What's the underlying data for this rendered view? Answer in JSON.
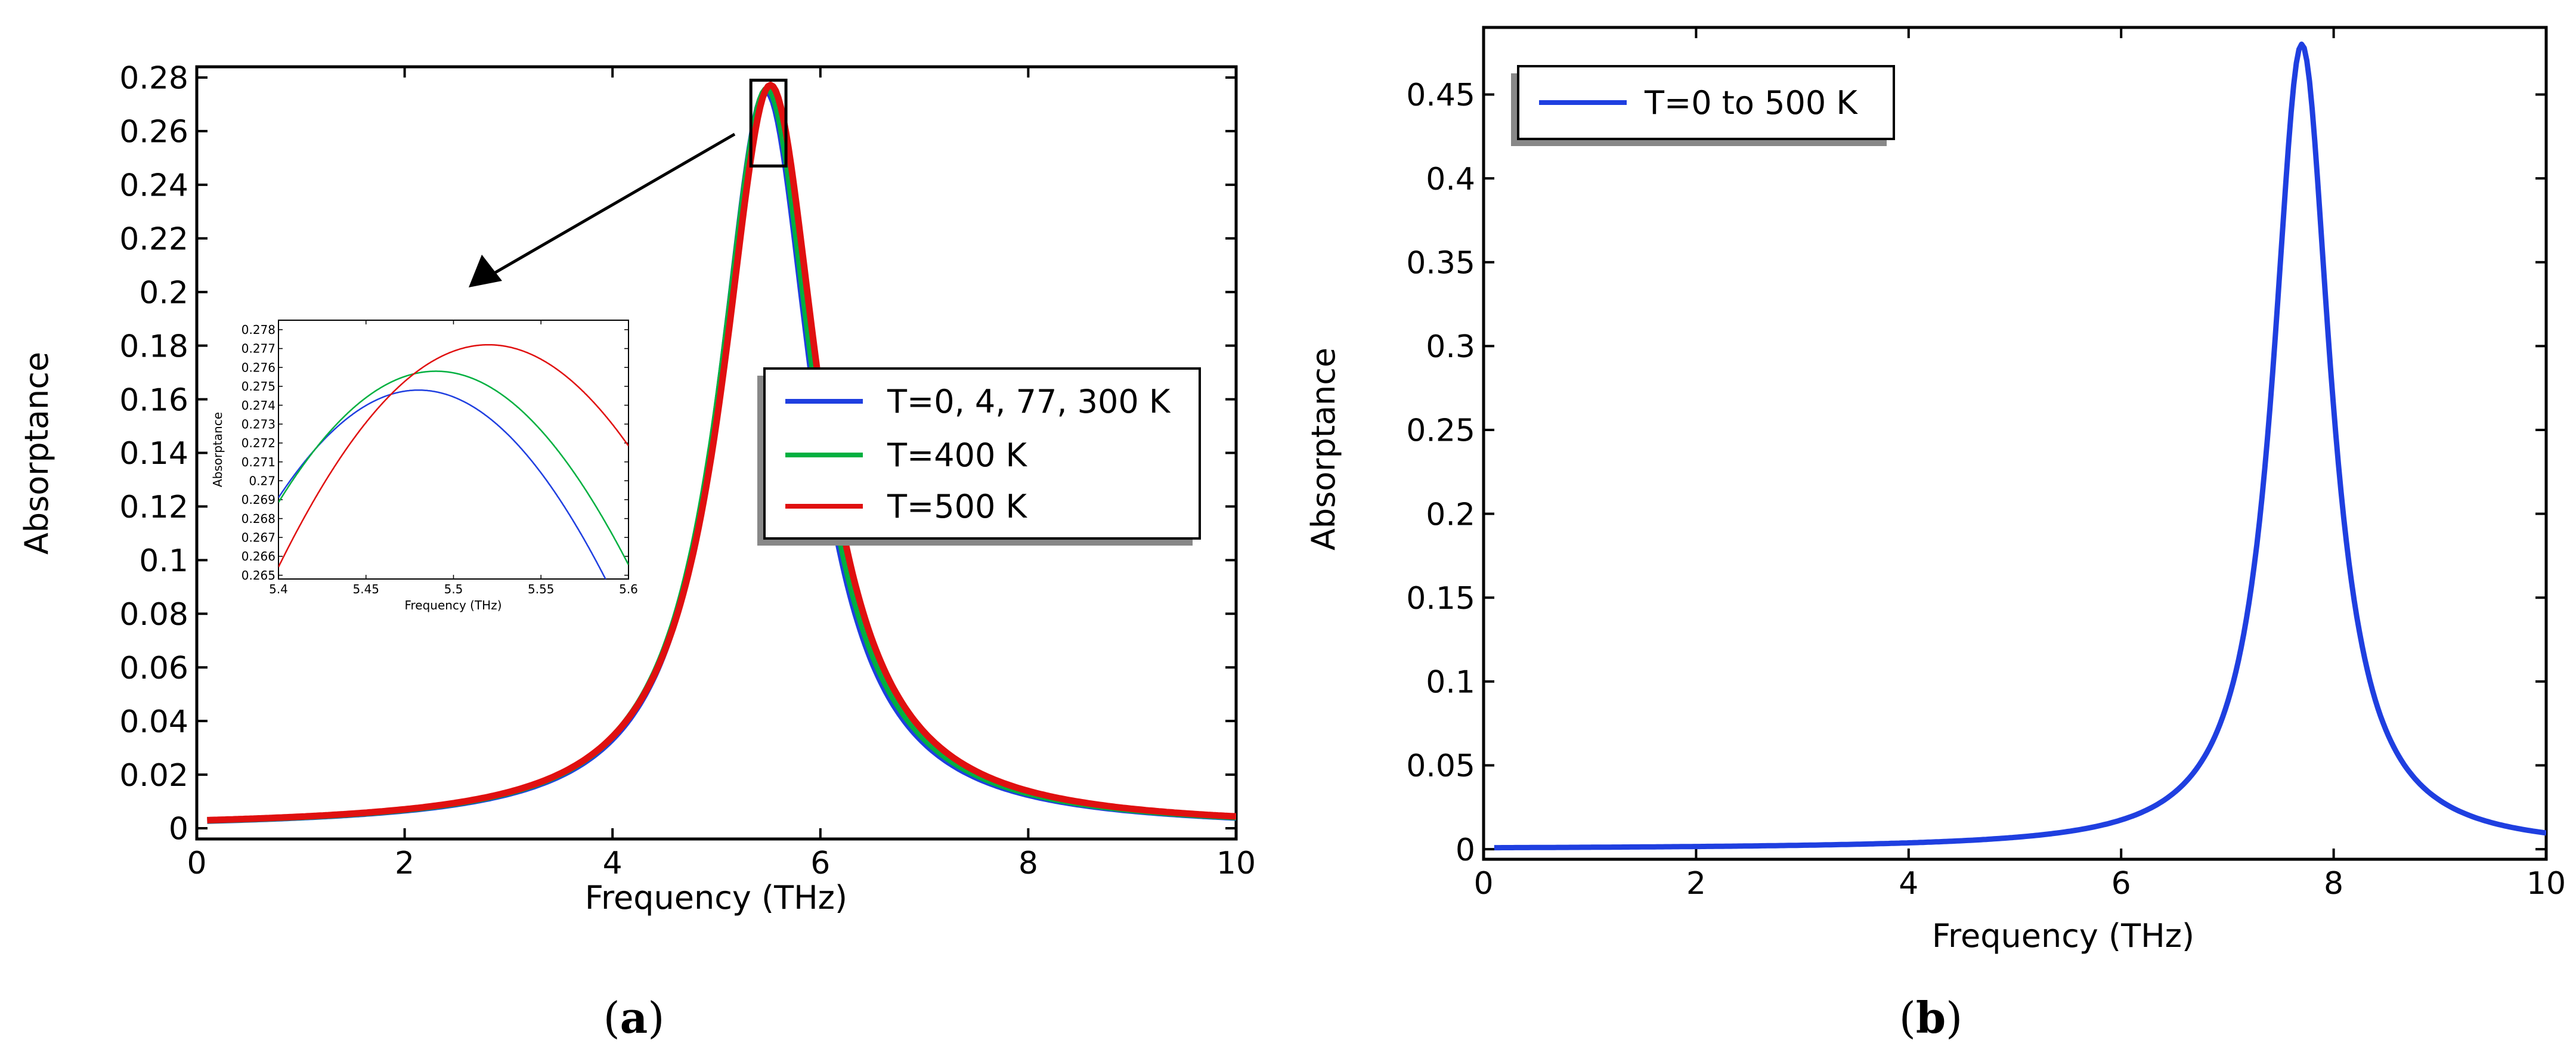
{
  "chart_data": [
    {
      "id": "a",
      "type": "line",
      "caption_letter": "a",
      "xlabel": "Frequency (THz)",
      "ylabel": "Absorptance",
      "xlim": [
        0,
        10
      ],
      "ylim": [
        -0.004,
        0.284
      ],
      "x_ticks": [
        0,
        2,
        4,
        6,
        8,
        10
      ],
      "x_tick_labels": [
        "0",
        "2",
        "4",
        "6",
        "8",
        "10"
      ],
      "y_ticks": [
        0,
        0.02,
        0.04,
        0.06,
        0.08,
        0.1,
        0.12,
        0.14,
        0.16,
        0.18,
        0.2,
        0.22,
        0.24,
        0.26,
        0.28
      ],
      "y_tick_labels": [
        "0",
        "0.02",
        "0.04",
        "0.06",
        "0.08",
        "0.1",
        "0.12",
        "0.14",
        "0.16",
        "0.18",
        "0.2",
        "0.22",
        "0.24",
        "0.26",
        "0.28"
      ],
      "legend_position": "center-right",
      "series": [
        {
          "name": "T=0, 4, 77, 300 K",
          "color": "#1f3fe0",
          "model": "lorentzian",
          "peak_x": 5.48,
          "peak_y": 0.2748,
          "width": 0.55,
          "x_range": [
            0.1,
            10
          ]
        },
        {
          "name": "T=400 K",
          "color": "#00b040",
          "model": "lorentzian",
          "peak_x": 5.49,
          "peak_y": 0.2758,
          "width": 0.56,
          "x_range": [
            0.1,
            10
          ]
        },
        {
          "name": "T=500 K",
          "color": "#e01010",
          "model": "lorentzian",
          "peak_x": 5.52,
          "peak_y": 0.2772,
          "width": 0.57,
          "x_range": [
            0.1,
            10
          ]
        }
      ],
      "zoom_box": {
        "x": [
          5.4,
          5.6
        ],
        "y": [
          0.247,
          0.279
        ]
      },
      "inset": {
        "xlabel": "Frequency (THz)",
        "ylabel": "Absorptance",
        "xlim": [
          5.4,
          5.6
        ],
        "ylim": [
          0.2648,
          0.2785
        ],
        "x_ticks": [
          5.4,
          5.45,
          5.5,
          5.55,
          5.6
        ],
        "x_tick_labels": [
          "5.4",
          "5.45",
          "5.5",
          "5.55",
          "5.6"
        ],
        "y_ticks": [
          0.265,
          0.266,
          0.267,
          0.268,
          0.269,
          0.27,
          0.271,
          0.272,
          0.273,
          0.274,
          0.275,
          0.276,
          0.277,
          0.278
        ],
        "y_tick_labels": [
          "0.265",
          "0.266",
          "0.267",
          "0.268",
          "0.269",
          "0.27",
          "0.271",
          "0.272",
          "0.273",
          "0.274",
          "0.275",
          "0.276",
          "0.277",
          "0.278"
        ]
      }
    },
    {
      "id": "b",
      "type": "line",
      "caption_letter": "b",
      "xlabel": "Frequency (THz)",
      "ylabel": "Absorptance",
      "xlim": [
        0,
        10
      ],
      "ylim": [
        -0.006,
        0.49
      ],
      "x_ticks": [
        0,
        2,
        4,
        6,
        8,
        10
      ],
      "x_tick_labels": [
        "0",
        "2",
        "4",
        "6",
        "8",
        "10"
      ],
      "y_ticks": [
        0,
        0.05,
        0.1,
        0.15,
        0.2,
        0.25,
        0.3,
        0.35,
        0.4,
        0.45
      ],
      "y_tick_labels": [
        "0",
        "0.05",
        "0.1",
        "0.15",
        "0.2",
        "0.25",
        "0.3",
        "0.35",
        "0.4",
        "0.45"
      ],
      "legend_position": "top-left",
      "series": [
        {
          "name": "T=0 to 500 K",
          "color": "#1f3fe0",
          "model": "lorentzian",
          "peak_x": 7.7,
          "peak_y": 0.48,
          "width": 0.33,
          "x_range": [
            0.1,
            10
          ]
        }
      ]
    }
  ]
}
